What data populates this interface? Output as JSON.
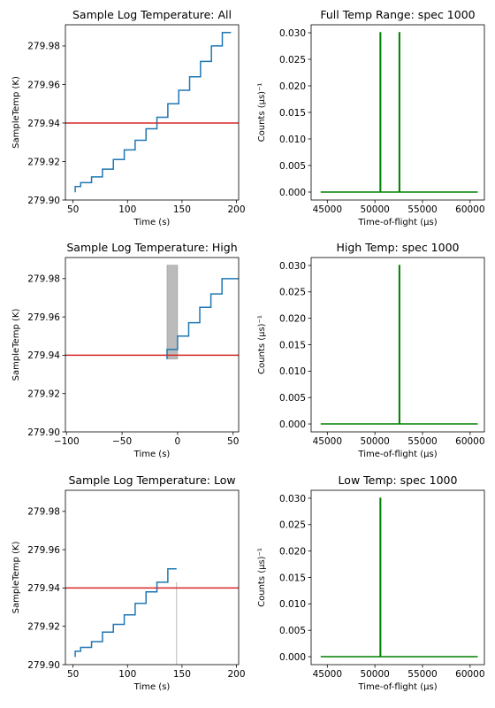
{
  "chart_data": [
    {
      "type": "line",
      "title": "Sample Log Temperature: All",
      "xlabel": "Time (s)",
      "ylabel": "SampleTemp (K)",
      "xlim": [
        43,
        202
      ],
      "ylim": [
        279.9,
        279.991
      ],
      "xticks": [
        50,
        100,
        150,
        200
      ],
      "yticks": [
        279.9,
        279.92,
        279.94,
        279.96,
        279.98
      ],
      "ytick_labels": [
        "279.90",
        "279.92",
        "279.94",
        "279.96",
        "279.98"
      ],
      "series": [
        {
          "color": "#1f77b4",
          "step": true,
          "x": [
            52,
            57,
            67,
            77,
            87,
            97,
            107,
            117,
            127,
            137,
            147,
            157,
            167,
            177,
            187,
            195
          ],
          "y": [
            279.904,
            279.907,
            279.909,
            279.912,
            279.916,
            279.921,
            279.926,
            279.931,
            279.937,
            279.943,
            279.95,
            279.957,
            279.964,
            279.972,
            279.98,
            279.987
          ]
        }
      ],
      "hlines": [
        {
          "y": 279.94,
          "color": "#d62728"
        }
      ]
    },
    {
      "type": "line",
      "title": "Full Temp Range: spec 1000",
      "xlabel": "Time-of-flight (μs)",
      "ylabel": "Counts (μs)⁻¹",
      "xlim": [
        43300,
        61500
      ],
      "ylim": [
        -0.0015,
        0.0315
      ],
      "xticks": [
        45000,
        50000,
        55000,
        60000
      ],
      "yticks": [
        0.0,
        0.005,
        0.01,
        0.015,
        0.02,
        0.025,
        0.03
      ],
      "ytick_labels": [
        "0.000",
        "0.005",
        "0.010",
        "0.015",
        "0.020",
        "0.025",
        "0.030"
      ],
      "series": [
        {
          "color": "#008000",
          "x": [
            44300,
            50550,
            50550,
            50600,
            50600,
            52550,
            52550,
            52600,
            52600,
            60800
          ],
          "y": [
            0,
            0,
            0.03,
            0.03,
            0,
            0,
            0.03,
            0.03,
            0,
            0
          ]
        }
      ]
    },
    {
      "type": "line",
      "title": "Sample Log Temperature: High",
      "xlabel": "Time (s)",
      "ylabel": "SampleTemp (K)",
      "xlim": [
        -101,
        55
      ],
      "ylim": [
        279.9,
        279.991
      ],
      "xticks": [
        -100,
        -50,
        0,
        50
      ],
      "yticks": [
        279.9,
        279.92,
        279.94,
        279.96,
        279.98
      ],
      "ytick_labels": [
        "279.90",
        "279.92",
        "279.94",
        "279.96",
        "279.98"
      ],
      "series": [
        {
          "color": "#1f77b4",
          "step": true,
          "x": [
            -9.5,
            0,
            10,
            20,
            30,
            40,
            50,
            55
          ],
          "y": [
            279.938,
            279.943,
            279.95,
            279.957,
            279.965,
            279.972,
            279.98,
            279.98
          ]
        }
      ],
      "hlines": [
        {
          "y": 279.94,
          "color": "#d62728"
        }
      ],
      "spans": [
        {
          "x0": -9.5,
          "x1": 0,
          "y0": 279.938,
          "y1": 279.987,
          "color": "#bbbbbb"
        }
      ]
    },
    {
      "type": "line",
      "title": "High Temp: spec 1000",
      "xlabel": "Time-of-flight (μs)",
      "ylabel": "Counts (μs)⁻¹",
      "xlim": [
        43300,
        61500
      ],
      "ylim": [
        -0.0015,
        0.0315
      ],
      "xticks": [
        45000,
        50000,
        55000,
        60000
      ],
      "yticks": [
        0.0,
        0.005,
        0.01,
        0.015,
        0.02,
        0.025,
        0.03
      ],
      "ytick_labels": [
        "0.000",
        "0.005",
        "0.010",
        "0.015",
        "0.020",
        "0.025",
        "0.030"
      ],
      "series": [
        {
          "color": "#008000",
          "x": [
            44300,
            52550,
            52550,
            52600,
            52600,
            60800
          ],
          "y": [
            0,
            0,
            0.03,
            0.03,
            0,
            0
          ]
        }
      ]
    },
    {
      "type": "line",
      "title": "Sample Log Temperature: Low",
      "xlabel": "Time (s)",
      "ylabel": "SampleTemp (K)",
      "xlim": [
        43,
        202
      ],
      "ylim": [
        279.9,
        279.991
      ],
      "xticks": [
        50,
        100,
        150,
        200
      ],
      "yticks": [
        279.9,
        279.92,
        279.94,
        279.96,
        279.98
      ],
      "ytick_labels": [
        "279.90",
        "279.92",
        "279.94",
        "279.96",
        "279.98"
      ],
      "series": [
        {
          "color": "#1f77b4",
          "step": true,
          "x": [
            52,
            57,
            67,
            77,
            87,
            97,
            107,
            117,
            127,
            137,
            145
          ],
          "y": [
            279.904,
            279.907,
            279.909,
            279.912,
            279.917,
            279.921,
            279.926,
            279.932,
            279.938,
            279.943,
            279.95
          ]
        }
      ],
      "hlines": [
        {
          "y": 279.94,
          "color": "#d62728"
        }
      ],
      "vlines": [
        {
          "x": 145,
          "y0": 279.9,
          "y1": 279.943,
          "color": "#bbbbbb"
        }
      ]
    },
    {
      "type": "line",
      "title": "Low Temp: spec 1000",
      "xlabel": "Time-of-flight (μs)",
      "ylabel": "Counts (μs)⁻¹",
      "xlim": [
        43300,
        61500
      ],
      "ylim": [
        -0.0015,
        0.0315
      ],
      "xticks": [
        45000,
        50000,
        55000,
        60000
      ],
      "yticks": [
        0.0,
        0.005,
        0.01,
        0.015,
        0.02,
        0.025,
        0.03
      ],
      "ytick_labels": [
        "0.000",
        "0.005",
        "0.010",
        "0.015",
        "0.020",
        "0.025",
        "0.030"
      ],
      "series": [
        {
          "color": "#008000",
          "x": [
            44300,
            50550,
            50550,
            50600,
            50600,
            60800
          ],
          "y": [
            0,
            0,
            0.03,
            0.03,
            0,
            0
          ]
        }
      ]
    }
  ]
}
